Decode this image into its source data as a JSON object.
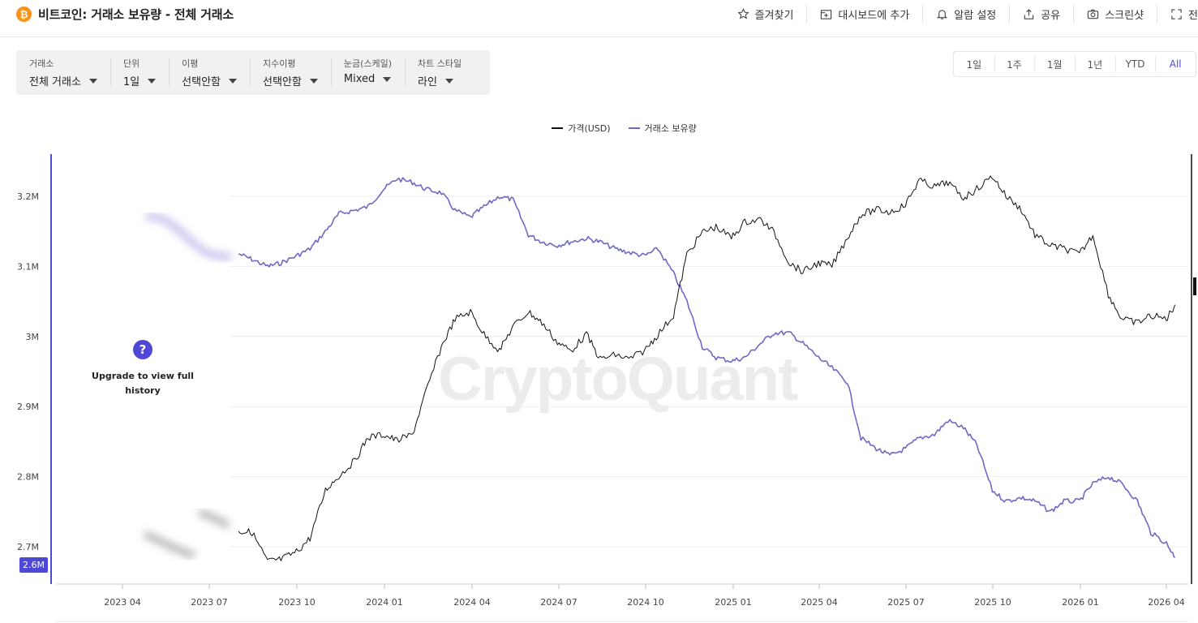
{
  "header": {
    "coin_icon": "bitcoin-icon",
    "title": "비트코인: 거래소 보유량 - 전체 거래소",
    "actions": [
      {
        "icon": "star-icon",
        "label": "즐겨찾기"
      },
      {
        "icon": "dashboard-add-icon",
        "label": "대시보드에 추가"
      },
      {
        "icon": "bell-icon",
        "label": "알람 설정"
      },
      {
        "icon": "share-icon",
        "label": "공유"
      },
      {
        "icon": "camera-icon",
        "label": "스크린샷"
      },
      {
        "icon": "fullscreen-icon",
        "label": "전"
      }
    ]
  },
  "filters": [
    {
      "label": "거래소",
      "value": "전체 거래소"
    },
    {
      "label": "단위",
      "value": "1일"
    },
    {
      "label": "이평",
      "value": "선택안함"
    },
    {
      "label": "지수이평",
      "value": "선택안함"
    },
    {
      "label": "눈금(스케일)",
      "value": "Mixed"
    },
    {
      "label": "차트 스타일",
      "value": "라인"
    }
  ],
  "ranges": [
    "1일",
    "1주",
    "1월",
    "1년",
    "YTD",
    "All"
  ],
  "active_range": "All",
  "upgrade": {
    "text": "Upgrade to view full history",
    "icon": "question-icon"
  },
  "watermark": "CryptoQuant",
  "current_value_badge": "2.6M",
  "colors": {
    "price": "#111111",
    "reserve": "#7068c6",
    "accent": "#4f48d6"
  },
  "chart_data": {
    "type": "line",
    "legend": [
      "가격(USD)",
      "거래소 보유량"
    ],
    "legend_position": "top-center",
    "x_ticks": [
      "2023 04",
      "2023 07",
      "2023 10",
      "2024 01",
      "2024 04",
      "2024 07",
      "2024 10",
      "2025 01",
      "2025 04",
      "2025 07",
      "2025 10",
      "2026 01",
      "2026 04"
    ],
    "y_ticks": [
      "3.2M",
      "3.1M",
      "3M",
      "2.9M",
      "2.8M",
      "2.7M"
    ],
    "ylim": [
      2.67,
      3.25
    ],
    "grid": true,
    "visible_from": "2023-08",
    "series": [
      {
        "name": "거래소 보유량",
        "x": [
          "2023-08-01",
          "2023-08-15",
          "2023-09-01",
          "2023-09-15",
          "2023-10-01",
          "2023-10-15",
          "2023-11-01",
          "2023-11-15",
          "2023-12-01",
          "2023-12-15",
          "2024-01-01",
          "2024-01-15",
          "2024-02-01",
          "2024-02-15",
          "2024-03-01",
          "2024-03-15",
          "2024-04-01",
          "2024-04-15",
          "2024-05-01",
          "2024-05-15",
          "2024-06-01",
          "2024-06-15",
          "2024-07-01",
          "2024-07-15",
          "2024-08-01",
          "2024-08-15",
          "2024-09-01",
          "2024-09-15",
          "2024-10-01",
          "2024-10-15",
          "2024-11-01",
          "2024-11-15",
          "2024-12-01",
          "2024-12-15",
          "2025-01-01",
          "2025-01-15",
          "2025-02-01",
          "2025-02-15",
          "2025-03-01",
          "2025-03-15",
          "2025-04-01",
          "2025-04-15",
          "2025-05-01",
          "2025-05-15",
          "2025-06-01",
          "2025-06-15",
          "2025-07-01",
          "2025-07-15",
          "2025-08-01",
          "2025-08-15",
          "2025-09-01",
          "2025-09-15",
          "2025-10-01",
          "2025-10-15",
          "2025-11-01",
          "2025-11-15",
          "2025-12-01",
          "2025-12-15",
          "2026-01-01",
          "2026-01-15",
          "2026-02-01",
          "2026-02-15",
          "2026-03-01",
          "2026-03-15",
          "2026-04-01",
          "2026-04-10"
        ],
        "values": [
          3.118,
          3.11,
          3.1,
          3.105,
          3.115,
          3.125,
          3.15,
          3.175,
          3.18,
          3.185,
          3.21,
          3.225,
          3.22,
          3.21,
          3.205,
          3.18,
          3.17,
          3.185,
          3.2,
          3.195,
          3.145,
          3.135,
          3.13,
          3.135,
          3.14,
          3.135,
          3.125,
          3.12,
          3.115,
          3.125,
          3.09,
          3.05,
          2.985,
          2.97,
          2.965,
          2.97,
          2.99,
          3.005,
          3.005,
          2.99,
          2.97,
          2.955,
          2.935,
          2.855,
          2.84,
          2.83,
          2.84,
          2.855,
          2.86,
          2.88,
          2.87,
          2.845,
          2.78,
          2.765,
          2.77,
          2.765,
          2.75,
          2.765,
          2.765,
          2.79,
          2.8,
          2.79,
          2.765,
          2.72,
          2.705,
          2.685
        ]
      },
      {
        "name": "가격(USD)",
        "x": [
          "2023-08-01",
          "2023-08-15",
          "2023-09-01",
          "2023-09-15",
          "2023-10-01",
          "2023-10-15",
          "2023-11-01",
          "2023-11-15",
          "2023-12-01",
          "2023-12-15",
          "2024-01-01",
          "2024-01-15",
          "2024-02-01",
          "2024-02-15",
          "2024-03-01",
          "2024-03-15",
          "2024-04-01",
          "2024-04-15",
          "2024-05-01",
          "2024-05-15",
          "2024-06-01",
          "2024-06-15",
          "2024-07-01",
          "2024-07-15",
          "2024-08-01",
          "2024-08-15",
          "2024-09-01",
          "2024-09-15",
          "2024-10-01",
          "2024-10-15",
          "2024-11-01",
          "2024-11-15",
          "2024-12-01",
          "2024-12-15",
          "2025-01-01",
          "2025-01-15",
          "2025-02-01",
          "2025-02-15",
          "2025-03-01",
          "2025-03-15",
          "2025-04-01",
          "2025-04-15",
          "2025-05-01",
          "2025-05-15",
          "2025-06-01",
          "2025-06-15",
          "2025-07-01",
          "2025-07-15",
          "2025-08-01",
          "2025-08-15",
          "2025-09-01",
          "2025-09-15",
          "2025-10-01",
          "2025-10-15",
          "2025-11-01",
          "2025-11-15",
          "2025-12-01",
          "2025-12-15",
          "2026-01-01",
          "2026-01-15",
          "2026-02-01",
          "2026-02-15",
          "2026-03-01",
          "2026-03-15",
          "2026-04-01",
          "2026-04-10"
        ],
        "values": [
          29300,
          29200,
          26000,
          26200,
          27000,
          28500,
          34500,
          36500,
          38700,
          42500,
          43000,
          42000,
          43000,
          51000,
          61000,
          68000,
          70000,
          64000,
          60000,
          66000,
          70000,
          67000,
          62000,
          60000,
          64000,
          58000,
          59000,
          58000,
          60000,
          64000,
          69000,
          88000,
          96000,
          98000,
          94000,
          100000,
          101000,
          96000,
          85000,
          82000,
          85000,
          84000,
          94000,
          103000,
          105000,
          104000,
          107000,
          118000,
          115000,
          117000,
          110000,
          114000,
          120000,
          111000,
          105000,
          95000,
          91000,
          90000,
          88000,
          95000,
          75000,
          68000,
          67000,
          69000,
          68000,
          72000
        ]
      }
    ]
  }
}
